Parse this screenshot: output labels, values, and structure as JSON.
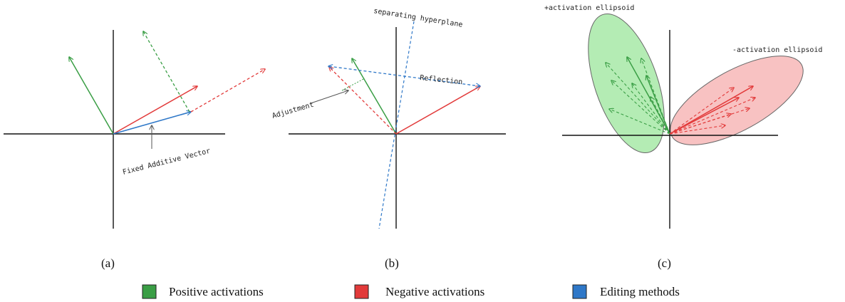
{
  "colors": {
    "positive": "#3a9e45",
    "negative": "#e23a3a",
    "editing": "#2f78c8",
    "axis": "#111111",
    "ellipse_pos_fill": "#b4ecb4",
    "ellipse_neg_fill": "#f8c2c2"
  },
  "panels": {
    "a": {
      "caption": "(a)",
      "annotation": "Fixed Additive Vector"
    },
    "b": {
      "caption": "(b)",
      "hyperplane": "separating hyperplane",
      "reflection": "Reflection",
      "adjustment": "Adjustment"
    },
    "c": {
      "caption": "(c)",
      "pos_ellipsoid": "+activation ellipsoid",
      "neg_ellipsoid": "-activation ellipsoid"
    }
  },
  "legend": {
    "positive": "Positive activations",
    "negative": "Negative activations",
    "editing": "Editing methods"
  }
}
